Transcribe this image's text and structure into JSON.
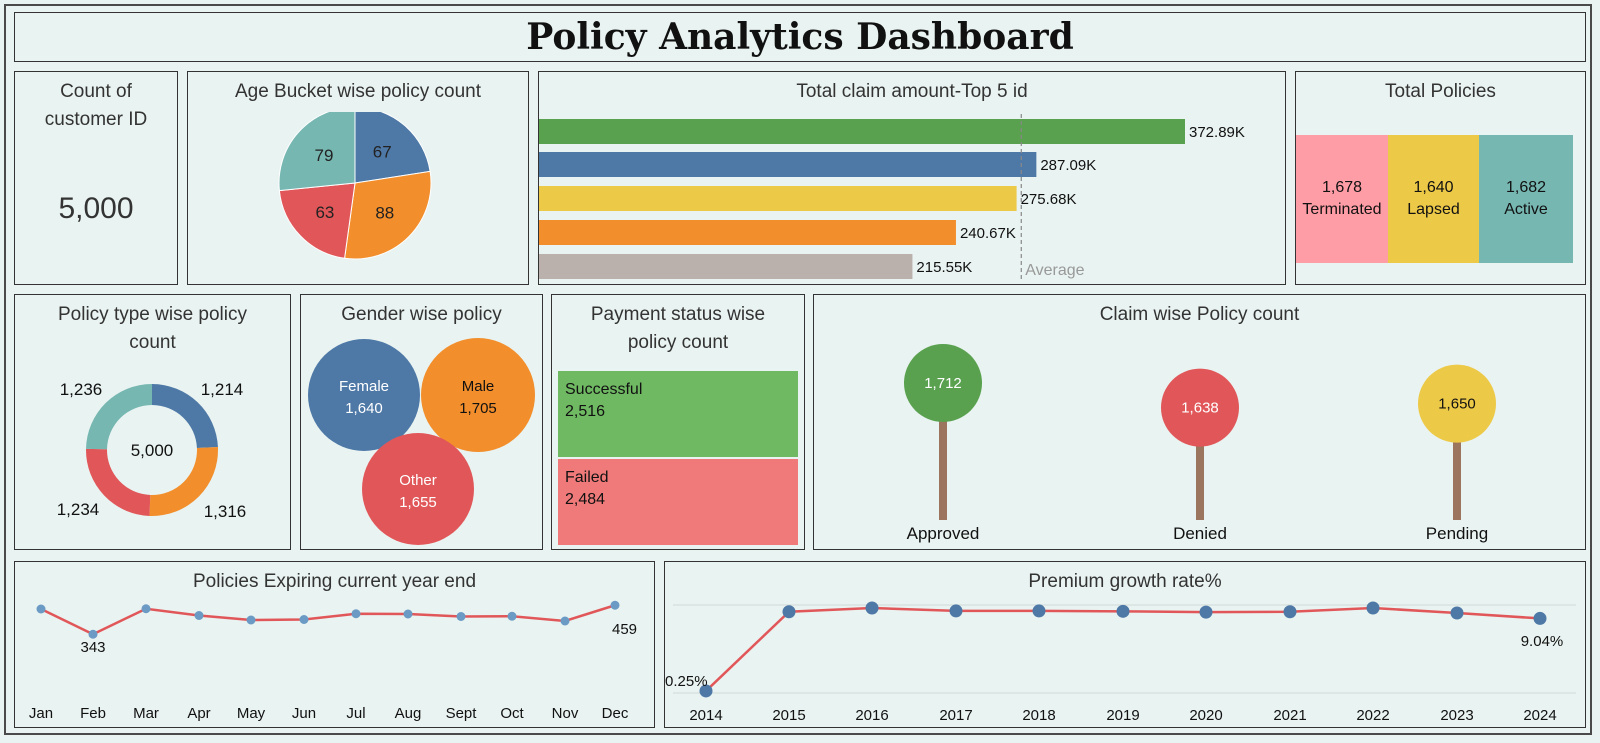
{
  "dashboard_title": "Policy Analytics Dashboard",
  "kpi": {
    "title_line1": "Count of",
    "title_line2": "customer ID",
    "value": "5,000"
  },
  "age_pie": {
    "title": "Age Bucket  wise  policy count"
  },
  "claim_top5": {
    "title": "Total claim amount-Top 5 id",
    "average_label": "Average"
  },
  "total_policies": {
    "title": "Total Policies",
    "blocks": [
      {
        "value": "1,678",
        "label": "Terminated",
        "color": "#ff9da6"
      },
      {
        "value": "1,640",
        "label": "Lapsed",
        "color": "#edc948"
      },
      {
        "value": "1,682",
        "label": "Active",
        "color": "#76b7b2"
      }
    ]
  },
  "policy_type": {
    "title_line1": "Policy type wise policy",
    "title_line2": "count",
    "center": "5,000"
  },
  "gender": {
    "title": "Gender wise policy"
  },
  "payment": {
    "title_line1": "Payment status wise",
    "title_line2": "policy count",
    "blocks": [
      {
        "label": "Successful",
        "value": "2,516",
        "color": "#70b963"
      },
      {
        "label": "Failed",
        "value": "2,484",
        "color": "#f07a7a"
      }
    ]
  },
  "claim_count": {
    "title": "Claim wise Policy count"
  },
  "expiring": {
    "title": "Policies Expiring current year end"
  },
  "growth": {
    "title": "Premium growth rate%"
  },
  "chart_data": [
    {
      "id": "age_pie",
      "type": "pie",
      "values": [
        67,
        88,
        63,
        79
      ],
      "colors": [
        "#4e79a7",
        "#f28e2b",
        "#e15759",
        "#76b7b2"
      ]
    },
    {
      "id": "claim_top5",
      "type": "bar",
      "orientation": "horizontal",
      "values": [
        372.89,
        287.09,
        275.68,
        240.67,
        215.55
      ],
      "labels": [
        "372.89K",
        "287.09K",
        "275.68K",
        "240.67K",
        "215.55K"
      ],
      "colors": [
        "#59a14f",
        "#4e79a7",
        "#edc948",
        "#f28e2b",
        "#bab0ac"
      ],
      "average": 278.38,
      "xlim": [
        0,
        390
      ]
    },
    {
      "id": "policy_type",
      "type": "pie",
      "donut": true,
      "values": [
        1214,
        1316,
        1234,
        1236
      ],
      "labels": [
        "1,214",
        "1,316",
        "1,234",
        "1,236"
      ],
      "colors": [
        "#4e79a7",
        "#f28e2b",
        "#e15759",
        "#76b7b2"
      ]
    },
    {
      "id": "gender",
      "type": "bubble",
      "categories": [
        "Female",
        "Male",
        "Other"
      ],
      "values": [
        1640,
        1705,
        1655
      ],
      "labels": [
        "1,640",
        "1,705",
        "1,655"
      ],
      "colors": [
        "#4e79a7",
        "#f28e2b",
        "#e15759"
      ]
    },
    {
      "id": "claim_count",
      "type": "lollipop",
      "categories": [
        "Approved",
        "Denied",
        "Pending"
      ],
      "values": [
        1712,
        1638,
        1650
      ],
      "labels": [
        "1,712",
        "1,638",
        "1,650"
      ],
      "colors": [
        "#59a14f",
        "#e15759",
        "#edc948"
      ],
      "stem_color": "#9c755f"
    },
    {
      "id": "expiring",
      "type": "line",
      "categories": [
        "Jan",
        "Feb",
        "Mar",
        "Apr",
        "May",
        "Jun",
        "Jul",
        "Aug",
        "Sept",
        "Oct",
        "Nov",
        "Dec"
      ],
      "values": [
        444,
        343,
        445,
        418,
        400,
        402,
        425,
        424,
        414,
        415,
        396,
        459
      ],
      "point_labels": {
        "1": "343",
        "11": "459"
      },
      "ylim": [
        300,
        480
      ],
      "line_color": "#e15759",
      "point_color": "#6b9ac4"
    },
    {
      "id": "growth",
      "type": "line",
      "categories": [
        "2014",
        "2015",
        "2016",
        "2017",
        "2018",
        "2019",
        "2020",
        "2021",
        "2022",
        "2023",
        "2024"
      ],
      "values": [
        0.25,
        9.85,
        10.3,
        9.95,
        9.95,
        9.9,
        9.8,
        9.85,
        10.3,
        9.7,
        9.04
      ],
      "point_labels": {
        "0": "0.25%",
        "10": "9.04%"
      },
      "ylim": [
        0,
        12
      ],
      "line_color": "#e15759",
      "point_color": "#4e79a7"
    }
  ]
}
